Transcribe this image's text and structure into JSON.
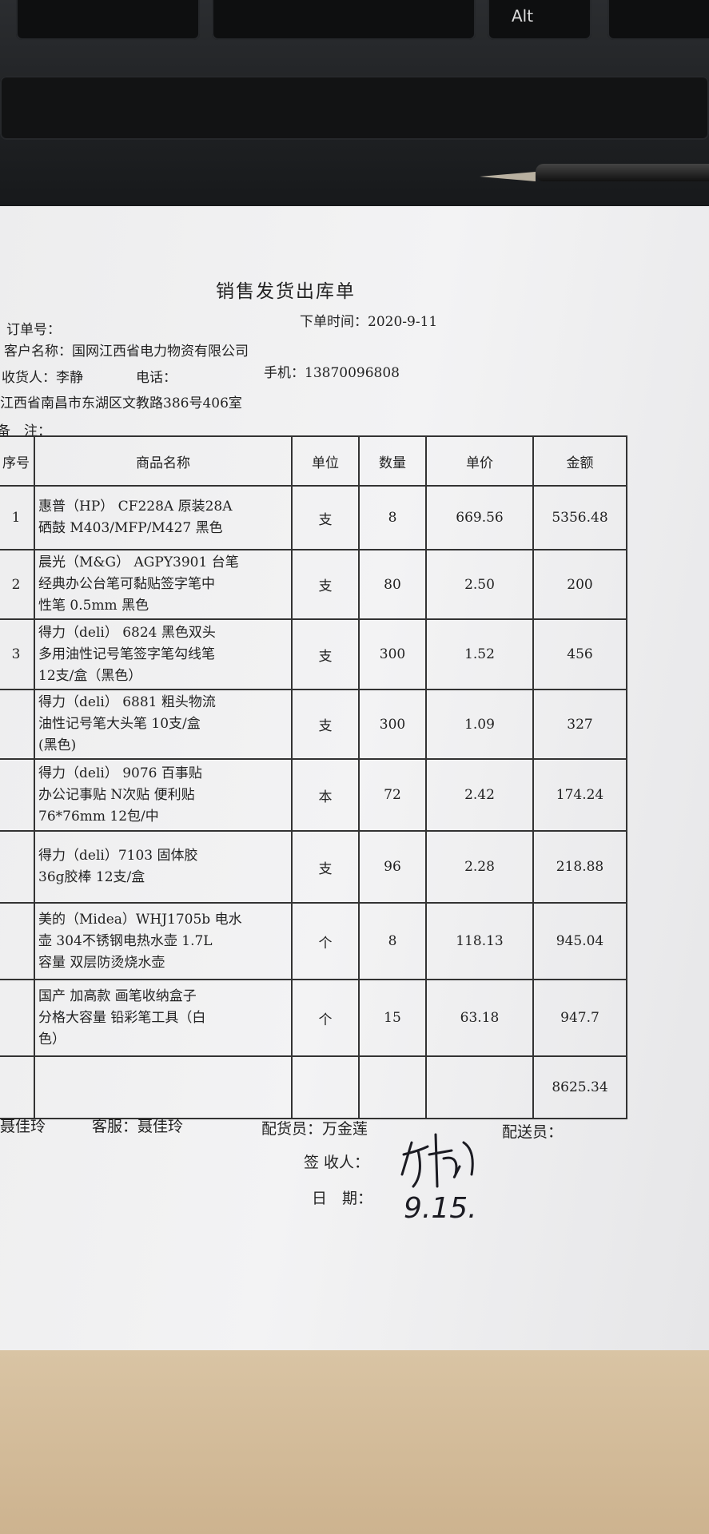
{
  "keyboard": {
    "alt_key": "Alt"
  },
  "document": {
    "title": "销售发货出库单",
    "order_no_label": "订单号：",
    "order_time": "下单时间：2020-9-11",
    "customer": "客户名称：国网江西省电力物资有限公司",
    "receiver": "收货人：李静",
    "phone_label": "电话：",
    "mobile": "手机：13870096808",
    "address": "江西省南昌市东湖区文教路386号406室",
    "remark_label": "备　注：",
    "columns": [
      "序号",
      "商品名称",
      "单位",
      "数量",
      "单价",
      "金额"
    ],
    "rows": [
      {
        "seq": "1",
        "name": "惠普（HP） CF228A 原装28A\n硒鼓 M403/MFP/M427 黑色",
        "unit": "支",
        "qty": "8",
        "price": "669.56",
        "amount": "5356.48"
      },
      {
        "seq": "2",
        "name": "晨光（M&G） AGPY3901 台笔\n经典办公台笔可黏贴签字笔中\n性笔 0.5mm 黑色",
        "unit": "支",
        "qty": "80",
        "price": "2.50",
        "amount": "200"
      },
      {
        "seq": "3",
        "name": "得力（deli） 6824 黑色双头\n多用油性记号笔签字笔勾线笔\n12支/盒（黑色）",
        "unit": "支",
        "qty": "300",
        "price": "1.52",
        "amount": "456"
      },
      {
        "seq": "",
        "name": "得力（deli） 6881 粗头物流\n油性记号笔大头笔 10支/盒\n(黑色)",
        "unit": "支",
        "qty": "300",
        "price": "1.09",
        "amount": "327"
      },
      {
        "seq": "",
        "name": "得力（deli） 9076 百事贴\n办公记事贴 N次贴 便利贴\n76*76mm 12包/中",
        "unit": "本",
        "qty": "72",
        "price": "2.42",
        "amount": "174.24"
      },
      {
        "seq": "",
        "name": "得力（deli）7103 固体胶\n36g胶棒 12支/盒",
        "unit": "支",
        "qty": "96",
        "price": "2.28",
        "amount": "218.88"
      },
      {
        "seq": "",
        "name": "美的（Midea）WHJ1705b 电水\n壶 304不锈钢电热水壶 1.7L\n容量 双层防烫烧水壶",
        "unit": "个",
        "qty": "8",
        "price": "118.13",
        "amount": "945.04"
      },
      {
        "seq": "",
        "name": "国产 加高款 画笔收纳盒子\n分格大容量 铅彩笔工具（白\n色）",
        "unit": "个",
        "qty": "15",
        "price": "63.18",
        "amount": "947.7"
      }
    ],
    "total": "8625.34",
    "maker": "聂佳玲",
    "service": "客服：聂佳玲",
    "picker": "配货员：万金莲",
    "deliverer": "配送员：",
    "signer_label": "签 收人：",
    "signature": "李静",
    "date_label": "日　期：",
    "date_handwritten": "9.15."
  }
}
